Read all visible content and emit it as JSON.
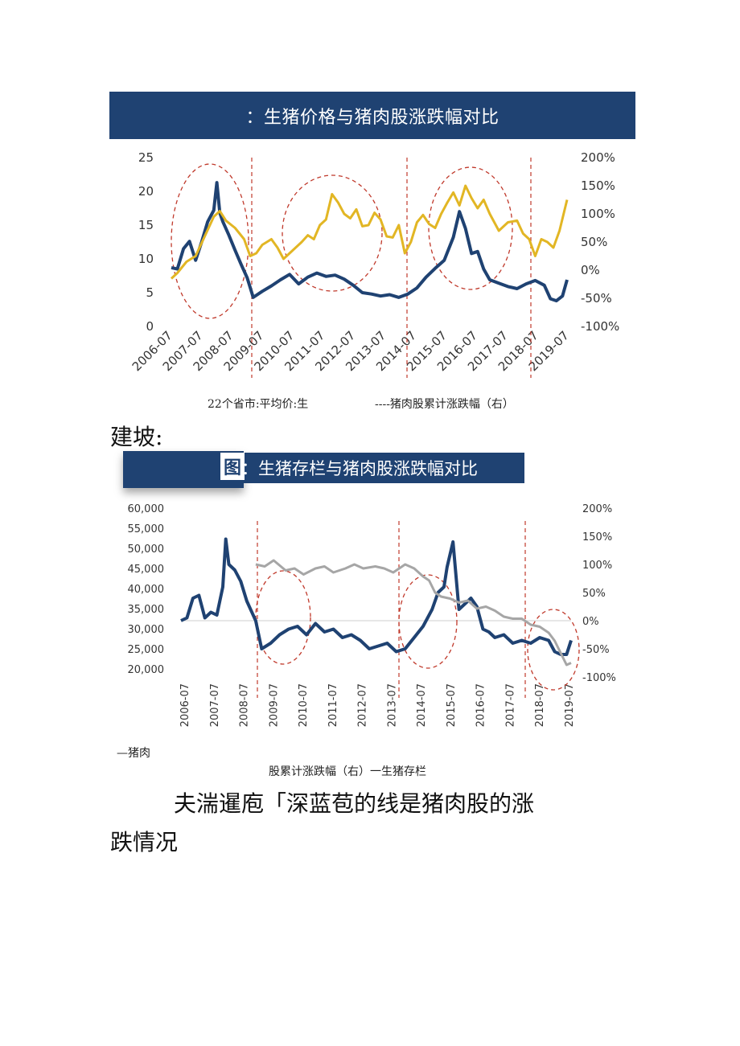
{
  "chart1": {
    "banner_title": "：生猪价格与猪肉股涨跌幅对比",
    "caption_left": "22个省市:平均价:生",
    "caption_right": "----猪肉股累计涨跌幅（右）",
    "chart_data": {
      "type": "line",
      "title": "：生猪价格与猪肉股涨跌幅对比",
      "x_ticks": [
        "2006-07",
        "2007-07",
        "2008-07",
        "2009-07",
        "2010-07",
        "2011-07",
        "2012-07",
        "2013-07",
        "2014-07",
        "2015-07",
        "2016-07",
        "2017-07",
        "2018-07",
        "2019-07"
      ],
      "y_left_ticks": [
        "25",
        "20",
        "15",
        "10",
        "5",
        "0"
      ],
      "y_right_ticks": [
        "200%",
        "150%",
        "100%",
        "50%",
        "0%",
        "-50%",
        "-100%"
      ],
      "ylim_left": [
        0,
        25
      ],
      "ylim_right": [
        -100,
        200
      ],
      "series": [
        {
          "name": "22个省市:平均价:生",
          "axis": "left",
          "color": "#1f4272",
          "x": [
            2006.5,
            2006.7,
            2006.9,
            2007.1,
            2007.3,
            2007.5,
            2007.7,
            2007.9,
            2008.0,
            2008.1,
            2008.2,
            2008.4,
            2008.6,
            2008.8,
            2009.0,
            2009.2,
            2009.5,
            2009.8,
            2010.1,
            2010.4,
            2010.7,
            2011.0,
            2011.3,
            2011.6,
            2011.9,
            2012.2,
            2012.5,
            2012.8,
            2013.1,
            2013.4,
            2013.7,
            2014.0,
            2014.3,
            2014.6,
            2014.9,
            2015.2,
            2015.5,
            2015.8,
            2016.0,
            2016.2,
            2016.4,
            2016.6,
            2016.8,
            2017.0,
            2017.3,
            2017.6,
            2017.9,
            2018.2,
            2018.5,
            2018.8,
            2019.0,
            2019.2,
            2019.4,
            2019.55
          ],
          "y": [
            8.7,
            8.5,
            11.5,
            12.6,
            9.8,
            12.5,
            15.5,
            17.2,
            21.3,
            16.8,
            15.5,
            13.5,
            11.3,
            9.2,
            7.2,
            4.3,
            5.2,
            6.0,
            6.9,
            7.7,
            6.3,
            7.3,
            7.9,
            7.4,
            7.6,
            7.0,
            6.1,
            5.0,
            4.8,
            4.5,
            4.7,
            4.3,
            4.8,
            5.7,
            7.3,
            8.6,
            9.8,
            13.2,
            17.0,
            14.5,
            10.8,
            11.1,
            8.5,
            6.9,
            6.4,
            5.9,
            5.6,
            6.3,
            6.8,
            6.1,
            4.1,
            3.8,
            4.5,
            6.9
          ]
        },
        {
          "name": "猪肉股累计涨跌幅（右）",
          "axis": "right",
          "color": "#e2b624",
          "x": [
            2006.5,
            2006.7,
            2007.0,
            2007.3,
            2007.6,
            2007.9,
            2008.1,
            2008.3,
            2008.6,
            2008.9,
            2009.1,
            2009.3,
            2009.5,
            2009.8,
            2010.0,
            2010.2,
            2010.5,
            2010.8,
            2011.0,
            2011.2,
            2011.4,
            2011.6,
            2011.8,
            2012.0,
            2012.2,
            2012.4,
            2012.6,
            2012.8,
            2013.0,
            2013.2,
            2013.4,
            2013.6,
            2013.8,
            2014.0,
            2014.2,
            2014.4,
            2014.6,
            2014.8,
            2015.0,
            2015.2,
            2015.4,
            2015.6,
            2015.8,
            2016.0,
            2016.2,
            2016.4,
            2016.6,
            2016.8,
            2017.0,
            2017.3,
            2017.6,
            2017.9,
            2018.1,
            2018.3,
            2018.5,
            2018.7,
            2018.9,
            2019.1,
            2019.3,
            2019.55
          ],
          "y": [
            -15,
            -5,
            15,
            25,
            60,
            95,
            105,
            88,
            75,
            55,
            25,
            30,
            45,
            55,
            40,
            20,
            35,
            50,
            62,
            55,
            80,
            90,
            135,
            120,
            100,
            92,
            108,
            78,
            80,
            102,
            90,
            60,
            58,
            80,
            30,
            50,
            85,
            98,
            82,
            75,
            100,
            120,
            138,
            115,
            150,
            128,
            110,
            125,
            100,
            70,
            85,
            88,
            65,
            55,
            25,
            55,
            50,
            40,
            70,
            125
          ]
        }
      ]
    }
  },
  "heading_mid": "建坡:",
  "chart2": {
    "banner_prefix": "图",
    "banner_title": "：生猪存栏与猪肉股涨跌幅对比",
    "caption_left": "—猪肉",
    "caption_center": "股累计涨跌幅（右）一生猪存栏",
    "chart_data": {
      "type": "line",
      "title": "：生猪存栏与猪肉股涨跌幅对比",
      "x_ticks": [
        "2006-07",
        "2007-07",
        "2008-07",
        "2009-07",
        "2010-07",
        "2011-07",
        "2012-07",
        "2013-07",
        "2014-07",
        "2015-07",
        "2016-07",
        "2017-07",
        "2018-07",
        "2019-07"
      ],
      "y_left_ticks": [
        "60,000",
        "55,000",
        "50,000",
        "45,000",
        "40,000",
        "35,000",
        "30,000",
        "25,000",
        "20,000"
      ],
      "y_right_ticks": [
        "200%",
        "150%",
        "100%",
        "50%",
        "0%",
        "-50%",
        "-100%"
      ],
      "ylim_left": [
        20000,
        60000
      ],
      "ylim_right": [
        -100,
        200
      ],
      "series": [
        {
          "name": "猪肉股累计涨跌幅（右）",
          "axis": "right",
          "color": "#1f4272",
          "x": [
            2006.5,
            2006.7,
            2006.9,
            2007.1,
            2007.3,
            2007.5,
            2007.7,
            2007.9,
            2008.0,
            2008.1,
            2008.3,
            2008.5,
            2008.7,
            2009.0,
            2009.2,
            2009.5,
            2009.8,
            2010.1,
            2010.4,
            2010.7,
            2011.0,
            2011.3,
            2011.6,
            2011.9,
            2012.2,
            2012.5,
            2012.8,
            2013.1,
            2013.4,
            2013.7,
            2014.0,
            2014.3,
            2014.6,
            2014.9,
            2015.1,
            2015.3,
            2015.4,
            2015.6,
            2015.8,
            2016.0,
            2016.2,
            2016.4,
            2016.6,
            2016.8,
            2017.0,
            2017.3,
            2017.6,
            2017.9,
            2018.2,
            2018.5,
            2018.8,
            2019.0,
            2019.2,
            2019.4,
            2019.55
          ],
          "y": [
            0,
            5,
            40,
            45,
            5,
            15,
            10,
            60,
            145,
            100,
            90,
            70,
            35,
            0,
            -50,
            -40,
            -25,
            -15,
            -10,
            -25,
            -5,
            -20,
            -15,
            -30,
            -25,
            -35,
            -50,
            -45,
            -40,
            -55,
            -50,
            -30,
            -10,
            20,
            50,
            60,
            95,
            140,
            20,
            30,
            40,
            25,
            -15,
            -20,
            -30,
            -25,
            -40,
            -35,
            -40,
            -30,
            -35,
            -55,
            -60,
            -60,
            -35
          ]
        },
        {
          "name": "生猪存栏",
          "axis": "left",
          "color": "#a6a6a6",
          "x": [
            2009.0,
            2009.3,
            2009.6,
            2010.0,
            2010.3,
            2010.6,
            2011.0,
            2011.3,
            2011.6,
            2012.0,
            2012.3,
            2012.6,
            2013.0,
            2013.3,
            2013.6,
            2014.0,
            2014.3,
            2014.6,
            2014.8,
            2015.0,
            2015.2,
            2015.5,
            2015.8,
            2016.1,
            2016.4,
            2016.7,
            2017.0,
            2017.3,
            2017.6,
            2017.9,
            2018.2,
            2018.5,
            2018.8,
            2019.0,
            2019.2,
            2019.4,
            2019.55
          ],
          "y": [
            46000,
            45500,
            47000,
            44500,
            45000,
            43500,
            45000,
            45500,
            44000,
            45000,
            46000,
            45000,
            45500,
            45000,
            44000,
            46000,
            45000,
            43000,
            42000,
            39000,
            38000,
            37500,
            36500,
            37000,
            35000,
            35500,
            34500,
            33000,
            32500,
            32500,
            31000,
            30500,
            29000,
            27000,
            24000,
            21000,
            21500
          ]
        }
      ]
    }
  },
  "paragraph": {
    "line1": "夫湍暹庖「深蓝苞的线是猪肉股的涨",
    "line2": "跌情况"
  }
}
